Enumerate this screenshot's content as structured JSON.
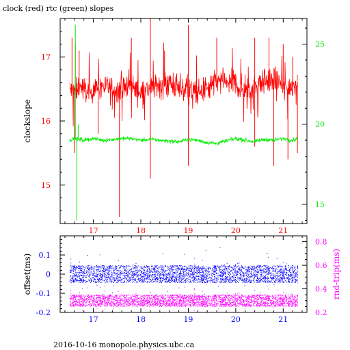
{
  "page": {
    "title": "clock (red) rtc (green) slopes",
    "footer": "2016-10-16 monopole.physics.ubc.ca"
  },
  "chart_data": [
    {
      "type": "line",
      "title": "clock (red) rtc (green) slopes",
      "xlabel": "",
      "ylabel": "clockslope",
      "xlim": [
        16.3,
        21.5
      ],
      "x_ticks": [
        17,
        18,
        19,
        20,
        21
      ],
      "left_axis": {
        "ylim": [
          14.4,
          17.6
        ],
        "ticks": [
          15,
          16,
          17
        ],
        "color": "#ff0000"
      },
      "right_axis": {
        "ylim": [
          13.8,
          26.6
        ],
        "ticks": [
          15,
          20,
          25
        ],
        "color": "#00ee00"
      },
      "grid": false,
      "series": [
        {
          "name": "clock",
          "axis": "left",
          "color": "#ff0000",
          "x": [
            16.5,
            16.6,
            16.7,
            16.8,
            16.9,
            17.0,
            17.2,
            17.4,
            17.6,
            17.8,
            18.0,
            18.2,
            18.4,
            18.6,
            18.8,
            19.0,
            19.2,
            19.4,
            19.6,
            19.8,
            20.0,
            20.2,
            20.4,
            20.6,
            20.8,
            21.0,
            21.2,
            21.3
          ],
          "y": [
            16.5,
            16.45,
            16.55,
            16.5,
            16.45,
            16.5,
            16.55,
            16.5,
            16.5,
            16.55,
            16.45,
            16.5,
            16.55,
            16.6,
            16.5,
            16.5,
            16.45,
            16.5,
            16.6,
            16.6,
            16.6,
            16.45,
            16.55,
            16.6,
            16.65,
            16.5,
            16.55,
            16.6
          ],
          "spikes_high": [
            [
              16.55,
              17.3
            ],
            [
              16.62,
              17.2
            ],
            [
              16.7,
              17.1
            ],
            [
              17.8,
              17.3
            ],
            [
              18.2,
              17.6
            ],
            [
              18.5,
              17.1
            ],
            [
              19.0,
              17.5
            ],
            [
              19.6,
              17.3
            ],
            [
              20.4,
              17.3
            ],
            [
              20.7,
              17.3
            ],
            [
              21.0,
              17.2
            ],
            [
              21.2,
              17.0
            ]
          ],
          "spikes_low": [
            [
              16.6,
              15.5
            ],
            [
              17.1,
              15.8
            ],
            [
              17.55,
              14.5
            ],
            [
              18.2,
              15.1
            ],
            [
              19.0,
              15.3
            ],
            [
              20.4,
              15.6
            ],
            [
              20.8,
              15.3
            ],
            [
              21.1,
              15.4
            ],
            [
              21.3,
              15.5
            ]
          ]
        },
        {
          "name": "rtc",
          "axis": "right",
          "color": "#00ee00",
          "x": [
            16.5,
            16.6,
            16.7,
            16.8,
            17.0,
            17.2,
            17.4,
            17.6,
            17.8,
            18.0,
            18.2,
            18.4,
            18.6,
            18.8,
            19.0,
            19.2,
            19.4,
            19.6,
            19.8,
            20.0,
            20.2,
            20.4,
            20.6,
            20.8,
            21.0,
            21.2,
            21.3
          ],
          "y": [
            19.0,
            19.1,
            19.05,
            19.0,
            19.1,
            19.0,
            19.05,
            19.1,
            19.1,
            19.0,
            19.05,
            19.0,
            18.95,
            18.9,
            19.05,
            19.0,
            18.85,
            18.8,
            18.95,
            19.1,
            19.0,
            18.9,
            19.05,
            19.0,
            19.1,
            19.0,
            19.1
          ],
          "spikes_high": [
            [
              16.62,
              26.2
            ],
            [
              16.68,
              20.0
            ]
          ],
          "spikes_low": [
            [
              16.65,
              14.0
            ]
          ]
        }
      ]
    },
    {
      "type": "scatter",
      "xlabel": "",
      "ylabel": "offset(ms)",
      "ylabel_right": "rnd-trip(ms)",
      "xlim": [
        16.3,
        21.5
      ],
      "x_ticks": [
        17,
        18,
        19,
        20,
        21
      ],
      "left_axis": {
        "ylim": [
          -0.2,
          0.2
        ],
        "ticks": [
          -0.2,
          -0.1,
          0,
          0.1
        ],
        "tick_labels": [
          "-0.2",
          "-0.1",
          "0",
          "0.1"
        ],
        "color": "#0000ff"
      },
      "right_axis": {
        "ylim": [
          0.2,
          0.85
        ],
        "ticks": [
          0.2,
          0.4,
          0.6,
          0.8
        ],
        "tick_labels": [
          "0.2",
          "0.4",
          "0.6",
          "0.8"
        ],
        "color": "#ff00ff"
      },
      "grid": false,
      "series": [
        {
          "name": "offset",
          "axis": "left",
          "color": "#0000ff",
          "x_range": [
            16.5,
            21.3
          ],
          "y_center": 0.0,
          "y_spread": 0.045
        },
        {
          "name": "rnd-trip",
          "axis": "right",
          "color": "#ff00ff",
          "x_range": [
            16.5,
            21.3
          ],
          "y_center": 0.3,
          "y_spread": 0.05
        }
      ]
    }
  ]
}
